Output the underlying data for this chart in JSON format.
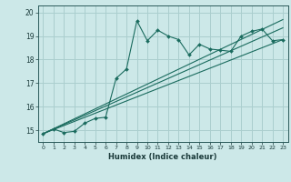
{
  "xlabel": "Humidex (Indice chaleur)",
  "bg_color": "#cce8e8",
  "grid_color": "#aacece",
  "line_color": "#1a6b5e",
  "xlim": [
    -0.5,
    23.5
  ],
  "ylim": [
    14.5,
    20.3
  ],
  "yticks": [
    15,
    16,
    17,
    18,
    19,
    20
  ],
  "xticks": [
    0,
    1,
    2,
    3,
    4,
    5,
    6,
    7,
    8,
    9,
    10,
    11,
    12,
    13,
    14,
    15,
    16,
    17,
    18,
    19,
    20,
    21,
    22,
    23
  ],
  "main_x": [
    0,
    1,
    2,
    3,
    4,
    5,
    6,
    7,
    8,
    9,
    10,
    11,
    12,
    13,
    14,
    15,
    16,
    17,
    18,
    19,
    20,
    21,
    22,
    23
  ],
  "main_y": [
    14.85,
    15.05,
    14.9,
    14.95,
    15.3,
    15.5,
    15.55,
    17.2,
    17.6,
    19.65,
    18.8,
    19.25,
    19.0,
    18.85,
    18.2,
    18.65,
    18.45,
    18.4,
    18.35,
    19.0,
    19.2,
    19.3,
    18.8,
    18.85
  ],
  "line1_x": [
    0,
    23
  ],
  "line1_y": [
    14.85,
    18.85
  ],
  "line2_x": [
    0,
    23
  ],
  "line2_y": [
    14.85,
    19.35
  ],
  "line3_x": [
    0,
    23
  ],
  "line3_y": [
    14.85,
    19.7
  ]
}
